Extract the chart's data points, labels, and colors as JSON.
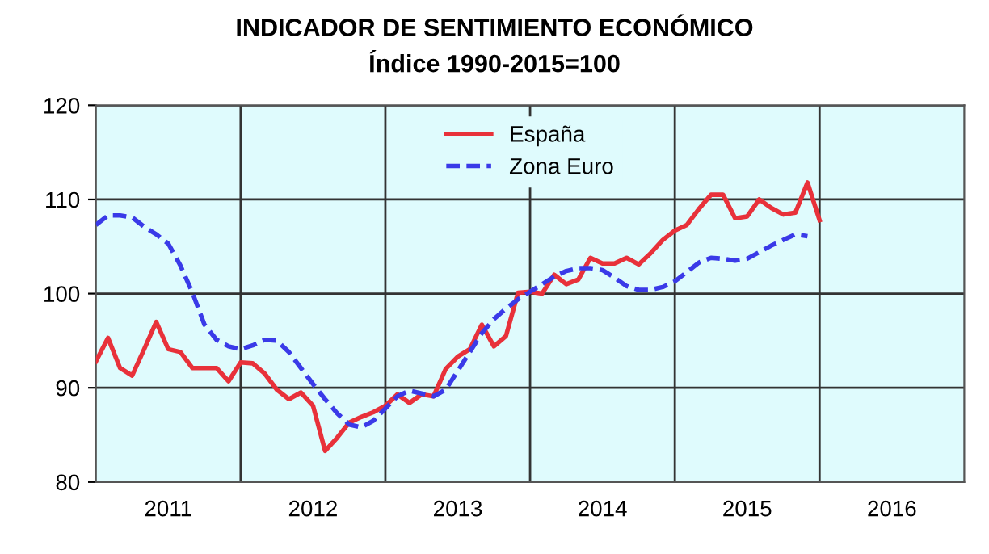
{
  "chart_data": {
    "type": "line",
    "title": "INDICADOR DE SENTIMIENTO ECONÓMICO",
    "subtitle": "Índice 1990-2015=100",
    "x": [
      "2011-01",
      "2011-02",
      "2011-03",
      "2011-04",
      "2011-05",
      "2011-06",
      "2011-07",
      "2011-08",
      "2011-09",
      "2011-10",
      "2011-11",
      "2011-12",
      "2012-01",
      "2012-02",
      "2012-03",
      "2012-04",
      "2012-05",
      "2012-06",
      "2012-07",
      "2012-08",
      "2012-09",
      "2012-10",
      "2012-11",
      "2012-12",
      "2013-01",
      "2013-02",
      "2013-03",
      "2013-04",
      "2013-05",
      "2013-06",
      "2013-07",
      "2013-08",
      "2013-09",
      "2013-10",
      "2013-11",
      "2013-12",
      "2014-01",
      "2014-02",
      "2014-03",
      "2014-04",
      "2014-05",
      "2014-06",
      "2014-07",
      "2014-08",
      "2014-09",
      "2014-10",
      "2014-11",
      "2014-12",
      "2015-01",
      "2015-02",
      "2015-03",
      "2015-04",
      "2015-05",
      "2015-06",
      "2015-07",
      "2015-08",
      "2015-09",
      "2015-10",
      "2015-11",
      "2015-12",
      "2016-01"
    ],
    "series": [
      {
        "name": "España",
        "color": "#e8313a",
        "line_style": "solid",
        "values": [
          92.8,
          95.3,
          92.1,
          91.3,
          94.1,
          97.0,
          94.1,
          93.8,
          92.1,
          92.1,
          92.1,
          90.7,
          92.7,
          92.6,
          91.5,
          89.8,
          88.8,
          89.5,
          88.1,
          83.3,
          84.7,
          86.3,
          86.9,
          87.4,
          88.1,
          89.3,
          88.4,
          89.3,
          89.1,
          92.0,
          93.3,
          94.1,
          96.7,
          94.4,
          95.5,
          100.1,
          100.2,
          100.0,
          102.0,
          101.0,
          101.5,
          103.8,
          103.2,
          103.2,
          103.8,
          103.1,
          104.3,
          105.7,
          106.7,
          107.3,
          109.0,
          110.5,
          110.5,
          108.0,
          108.2,
          110.0,
          109.1,
          108.4,
          108.6,
          111.8,
          107.8
        ]
      },
      {
        "name": "Zona Euro",
        "color": "#3a3ae8",
        "line_style": "dashed",
        "values": [
          107.3,
          108.3,
          108.3,
          108.1,
          107.1,
          106.3,
          105.3,
          103.0,
          100.1,
          96.7,
          95.1,
          94.4,
          94.1,
          94.5,
          95.1,
          95.0,
          93.8,
          92.1,
          90.4,
          88.8,
          87.3,
          86.1,
          85.8,
          86.5,
          87.8,
          89.1,
          89.7,
          89.4,
          89.1,
          89.8,
          91.8,
          93.8,
          95.8,
          97.3,
          98.4,
          99.4,
          100.2,
          101.0,
          101.8,
          102.4,
          102.7,
          102.7,
          102.5,
          101.7,
          100.8,
          100.4,
          100.4,
          100.7,
          101.3,
          102.3,
          103.3,
          103.8,
          103.7,
          103.5,
          103.7,
          104.4,
          105.1,
          105.7,
          106.3,
          106.1,
          null
        ]
      }
    ],
    "xlim": [
      "2011-01-01",
      "2017-01-01"
    ],
    "xticks": [
      {
        "value": "2011-07-01",
        "label": "2011"
      },
      {
        "value": "2012-01-01",
        "label": null
      },
      {
        "value": "2012-07-01",
        "label": "2012"
      },
      {
        "value": "2013-01-01",
        "label": null
      },
      {
        "value": "2013-07-01",
        "label": "2013"
      },
      {
        "value": "2014-01-01",
        "label": null
      },
      {
        "value": "2014-07-01",
        "label": "2014"
      },
      {
        "value": "2015-01-01",
        "label": null
      },
      {
        "value": "2015-07-01",
        "label": "2015"
      },
      {
        "value": "2016-01-01",
        "label": null
      },
      {
        "value": "2016-07-01",
        "label": "2016"
      }
    ],
    "ylim": [
      80,
      120
    ],
    "yticks": [
      80,
      90,
      100,
      110,
      120
    ],
    "grid": true,
    "legend": "top",
    "marker": "none"
  }
}
